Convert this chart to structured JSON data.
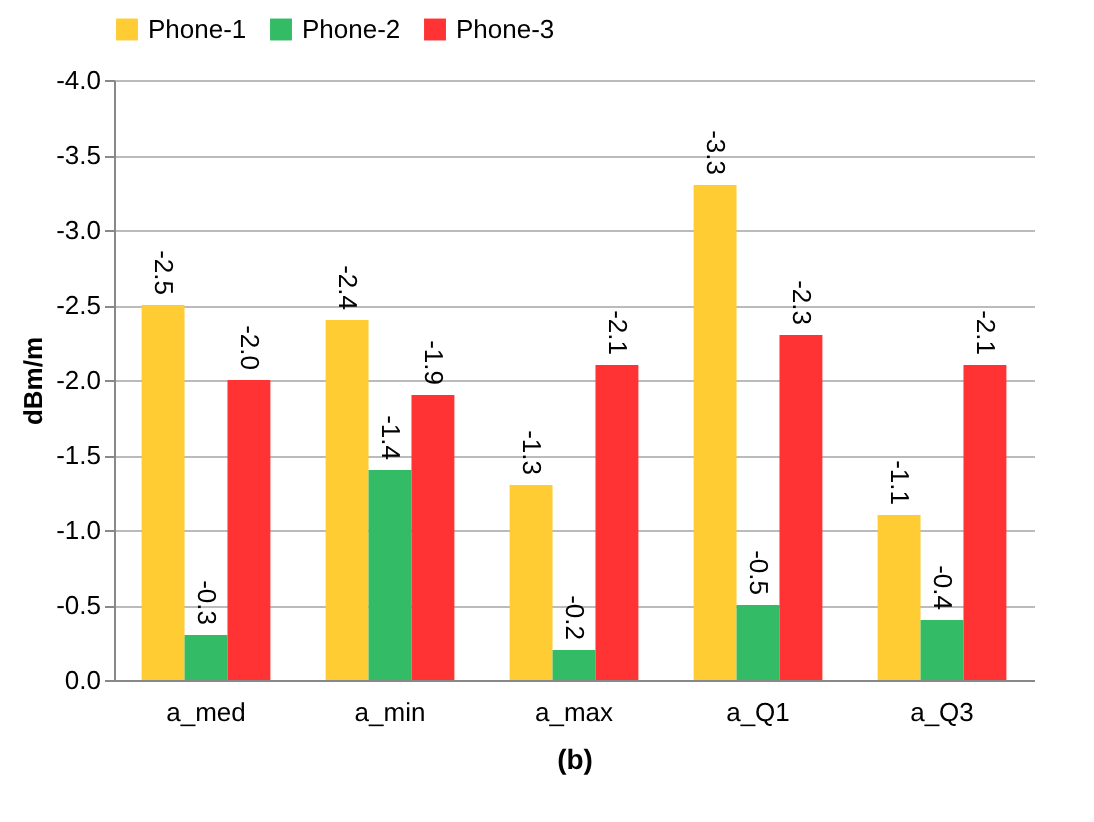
{
  "chart_data": {
    "type": "bar",
    "xlabel": "(b)",
    "ylabel": "dBm/m",
    "categories": [
      "a_med",
      "a_min",
      "a_max",
      "a_Q1",
      "a_Q3"
    ],
    "series": [
      {
        "name": "Phone-1",
        "color": "#ffcc33",
        "values": [
          -2.5,
          -2.4,
          -1.3,
          -3.3,
          -1.1
        ],
        "value_labels": [
          "-2.5",
          "-2.4",
          "-1.3",
          "-3.3",
          "-1.1"
        ]
      },
      {
        "name": "Phone-2",
        "color": "#33bb66",
        "values": [
          -0.3,
          -1.4,
          -0.2,
          -0.5,
          -0.4
        ],
        "value_labels": [
          "-0.3",
          "-1.4",
          "-0.2",
          "-0.5",
          "-0.4"
        ]
      },
      {
        "name": "Phone-3",
        "color": "#ff3333",
        "values": [
          -2.0,
          -1.9,
          -2.1,
          -2.3,
          -2.1
        ],
        "value_labels": [
          "-2.0",
          "-1.9",
          "-2.1",
          "-2.3",
          "-2.1"
        ]
      }
    ],
    "ylim": [
      0,
      -4.0
    ],
    "yticks": [
      {
        "value": 0,
        "label": "0.0"
      },
      {
        "value": -0.5,
        "label": "-0.5"
      },
      {
        "value": -1,
        "label": "-1.0"
      },
      {
        "value": -1.5,
        "label": "-1.5"
      },
      {
        "value": -2,
        "label": "-2.0"
      },
      {
        "value": -2.5,
        "label": "-2.5"
      },
      {
        "value": -3,
        "label": "-3.0"
      },
      {
        "value": -3.5,
        "label": "-3.5"
      },
      {
        "value": -4,
        "label": "-4.0"
      }
    ],
    "grid": "y",
    "legend": "top"
  }
}
